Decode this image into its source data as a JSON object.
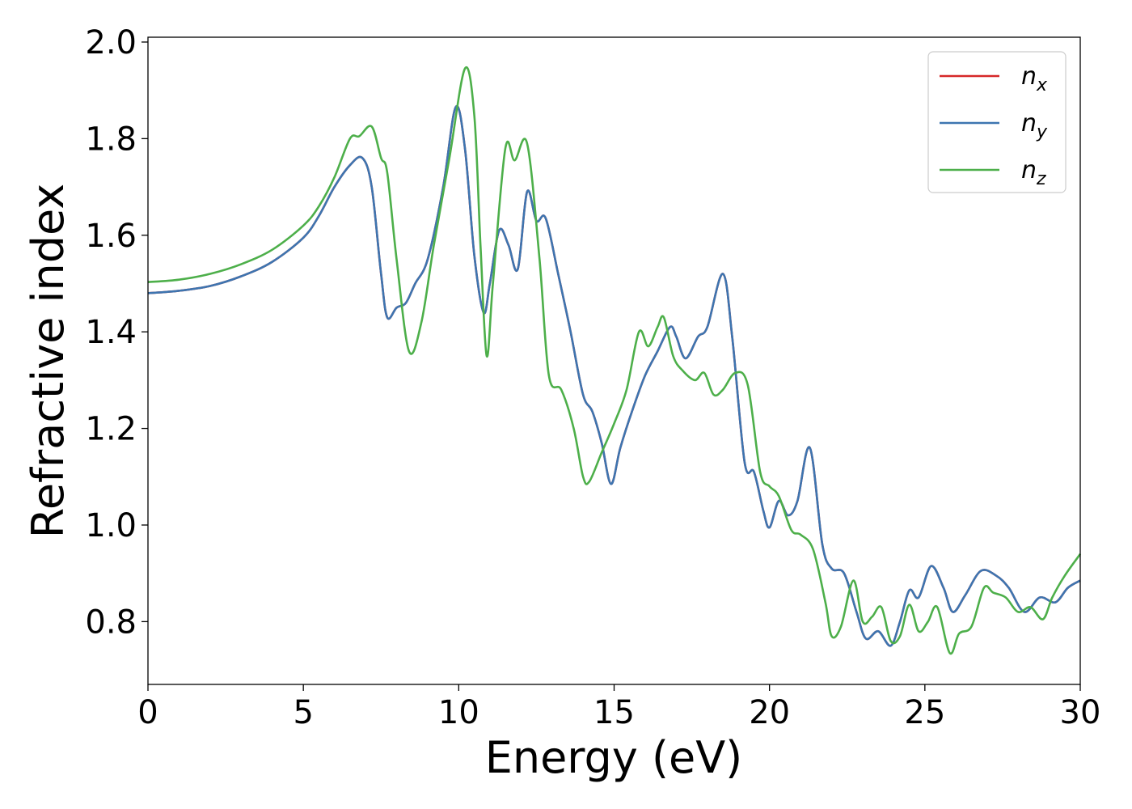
{
  "chart_data": {
    "type": "line",
    "title": "",
    "xlabel": "Energy (eV)",
    "ylabel": "Refractive index",
    "xlim": [
      0,
      30
    ],
    "ylim": [
      0.67,
      2.01
    ],
    "xticks": [
      0,
      5,
      10,
      15,
      20,
      25,
      30
    ],
    "yticks": [
      0.8,
      1.0,
      1.2,
      1.4,
      1.6,
      1.8,
      2.0
    ],
    "grid": false,
    "legend_position": "top-right",
    "series": [
      {
        "name": "n",
        "subscript": "x",
        "color": "#d62728",
        "x": [
          0,
          1,
          2,
          3,
          4,
          5,
          5.5,
          6,
          6.5,
          6.9,
          7.2,
          7.5,
          7.7,
          8.0,
          8.3,
          8.6,
          9.0,
          9.5,
          9.9,
          10.2,
          10.5,
          10.8,
          11.0,
          11.3,
          11.6,
          11.9,
          12.2,
          12.5,
          12.8,
          13.2,
          13.6,
          14.0,
          14.3,
          14.6,
          14.9,
          15.2,
          15.6,
          16.0,
          16.4,
          16.8,
          17.0,
          17.3,
          17.7,
          18.0,
          18.5,
          18.8,
          19.2,
          19.5,
          19.8,
          20.0,
          20.3,
          20.6,
          20.9,
          21.3,
          21.7,
          22.0,
          22.4,
          22.8,
          23.1,
          23.5,
          23.9,
          24.2,
          24.5,
          24.8,
          25.2,
          25.6,
          25.9,
          26.3,
          26.8,
          27.3,
          27.7,
          28.2,
          28.7,
          29.2,
          29.6,
          30.0
        ],
        "values": [
          1.48,
          1.485,
          1.495,
          1.515,
          1.545,
          1.595,
          1.64,
          1.7,
          1.745,
          1.76,
          1.7,
          1.52,
          1.43,
          1.45,
          1.46,
          1.5,
          1.55,
          1.7,
          1.865,
          1.78,
          1.56,
          1.44,
          1.5,
          1.61,
          1.58,
          1.53,
          1.69,
          1.63,
          1.635,
          1.52,
          1.4,
          1.27,
          1.235,
          1.17,
          1.085,
          1.16,
          1.24,
          1.31,
          1.36,
          1.41,
          1.39,
          1.345,
          1.39,
          1.41,
          1.52,
          1.39,
          1.13,
          1.11,
          1.03,
          0.995,
          1.05,
          1.02,
          1.05,
          1.16,
          0.96,
          0.91,
          0.9,
          0.82,
          0.765,
          0.78,
          0.75,
          0.8,
          0.865,
          0.85,
          0.915,
          0.87,
          0.82,
          0.855,
          0.905,
          0.895,
          0.87,
          0.82,
          0.85,
          0.84,
          0.87,
          0.885
        ]
      },
      {
        "name": "n",
        "subscript": "y",
        "color": "#3d75b0",
        "x": [
          0,
          1,
          2,
          3,
          4,
          5,
          5.5,
          6,
          6.5,
          6.9,
          7.2,
          7.5,
          7.7,
          8.0,
          8.3,
          8.6,
          9.0,
          9.5,
          9.9,
          10.2,
          10.5,
          10.8,
          11.0,
          11.3,
          11.6,
          11.9,
          12.2,
          12.5,
          12.8,
          13.2,
          13.6,
          14.0,
          14.3,
          14.6,
          14.9,
          15.2,
          15.6,
          16.0,
          16.4,
          16.8,
          17.0,
          17.3,
          17.7,
          18.0,
          18.5,
          18.8,
          19.2,
          19.5,
          19.8,
          20.0,
          20.3,
          20.6,
          20.9,
          21.3,
          21.7,
          22.0,
          22.4,
          22.8,
          23.1,
          23.5,
          23.9,
          24.2,
          24.5,
          24.8,
          25.2,
          25.6,
          25.9,
          26.3,
          26.8,
          27.3,
          27.7,
          28.2,
          28.7,
          29.2,
          29.6,
          30.0
        ],
        "values": [
          1.48,
          1.485,
          1.495,
          1.515,
          1.545,
          1.595,
          1.64,
          1.7,
          1.745,
          1.76,
          1.7,
          1.52,
          1.43,
          1.45,
          1.46,
          1.5,
          1.55,
          1.7,
          1.865,
          1.78,
          1.56,
          1.44,
          1.5,
          1.61,
          1.58,
          1.53,
          1.69,
          1.63,
          1.635,
          1.52,
          1.4,
          1.27,
          1.235,
          1.17,
          1.085,
          1.16,
          1.24,
          1.31,
          1.36,
          1.41,
          1.39,
          1.345,
          1.39,
          1.41,
          1.52,
          1.39,
          1.13,
          1.11,
          1.03,
          0.995,
          1.05,
          1.02,
          1.05,
          1.16,
          0.96,
          0.91,
          0.9,
          0.82,
          0.765,
          0.78,
          0.75,
          0.8,
          0.865,
          0.85,
          0.915,
          0.87,
          0.82,
          0.855,
          0.905,
          0.895,
          0.87,
          0.82,
          0.85,
          0.84,
          0.87,
          0.885
        ]
      },
      {
        "name": "n",
        "subscript": "z",
        "color": "#4daf4a",
        "x": [
          0,
          1,
          2,
          3,
          4,
          5,
          5.5,
          6,
          6.5,
          6.8,
          7.2,
          7.5,
          7.7,
          8.0,
          8.4,
          8.8,
          9.2,
          9.7,
          10.2,
          10.5,
          10.7,
          10.9,
          11.1,
          11.5,
          11.8,
          12.2,
          12.6,
          12.9,
          13.3,
          13.7,
          14.0,
          14.2,
          14.6,
          15.0,
          15.4,
          15.8,
          16.1,
          16.4,
          16.6,
          16.9,
          17.2,
          17.6,
          17.9,
          18.2,
          18.5,
          18.9,
          19.3,
          19.7,
          20.0,
          20.3,
          20.7,
          21.0,
          21.4,
          21.8,
          22.0,
          22.3,
          22.7,
          23.0,
          23.3,
          23.6,
          23.9,
          24.2,
          24.5,
          24.8,
          25.1,
          25.4,
          25.8,
          26.1,
          26.5,
          26.9,
          27.2,
          27.6,
          28.0,
          28.4,
          28.8,
          29.1,
          29.5,
          30.0
        ],
        "values": [
          1.503,
          1.508,
          1.52,
          1.54,
          1.57,
          1.62,
          1.66,
          1.72,
          1.8,
          1.805,
          1.825,
          1.76,
          1.73,
          1.55,
          1.36,
          1.42,
          1.58,
          1.76,
          1.945,
          1.85,
          1.58,
          1.35,
          1.5,
          1.78,
          1.755,
          1.79,
          1.55,
          1.31,
          1.28,
          1.2,
          1.1,
          1.09,
          1.15,
          1.21,
          1.28,
          1.4,
          1.37,
          1.41,
          1.43,
          1.35,
          1.32,
          1.3,
          1.315,
          1.27,
          1.28,
          1.315,
          1.29,
          1.11,
          1.08,
          1.06,
          0.99,
          0.98,
          0.95,
          0.84,
          0.77,
          0.79,
          0.885,
          0.8,
          0.81,
          0.83,
          0.76,
          0.77,
          0.835,
          0.78,
          0.8,
          0.83,
          0.735,
          0.775,
          0.79,
          0.87,
          0.86,
          0.85,
          0.82,
          0.83,
          0.805,
          0.85,
          0.895,
          0.94
        ]
      }
    ]
  }
}
